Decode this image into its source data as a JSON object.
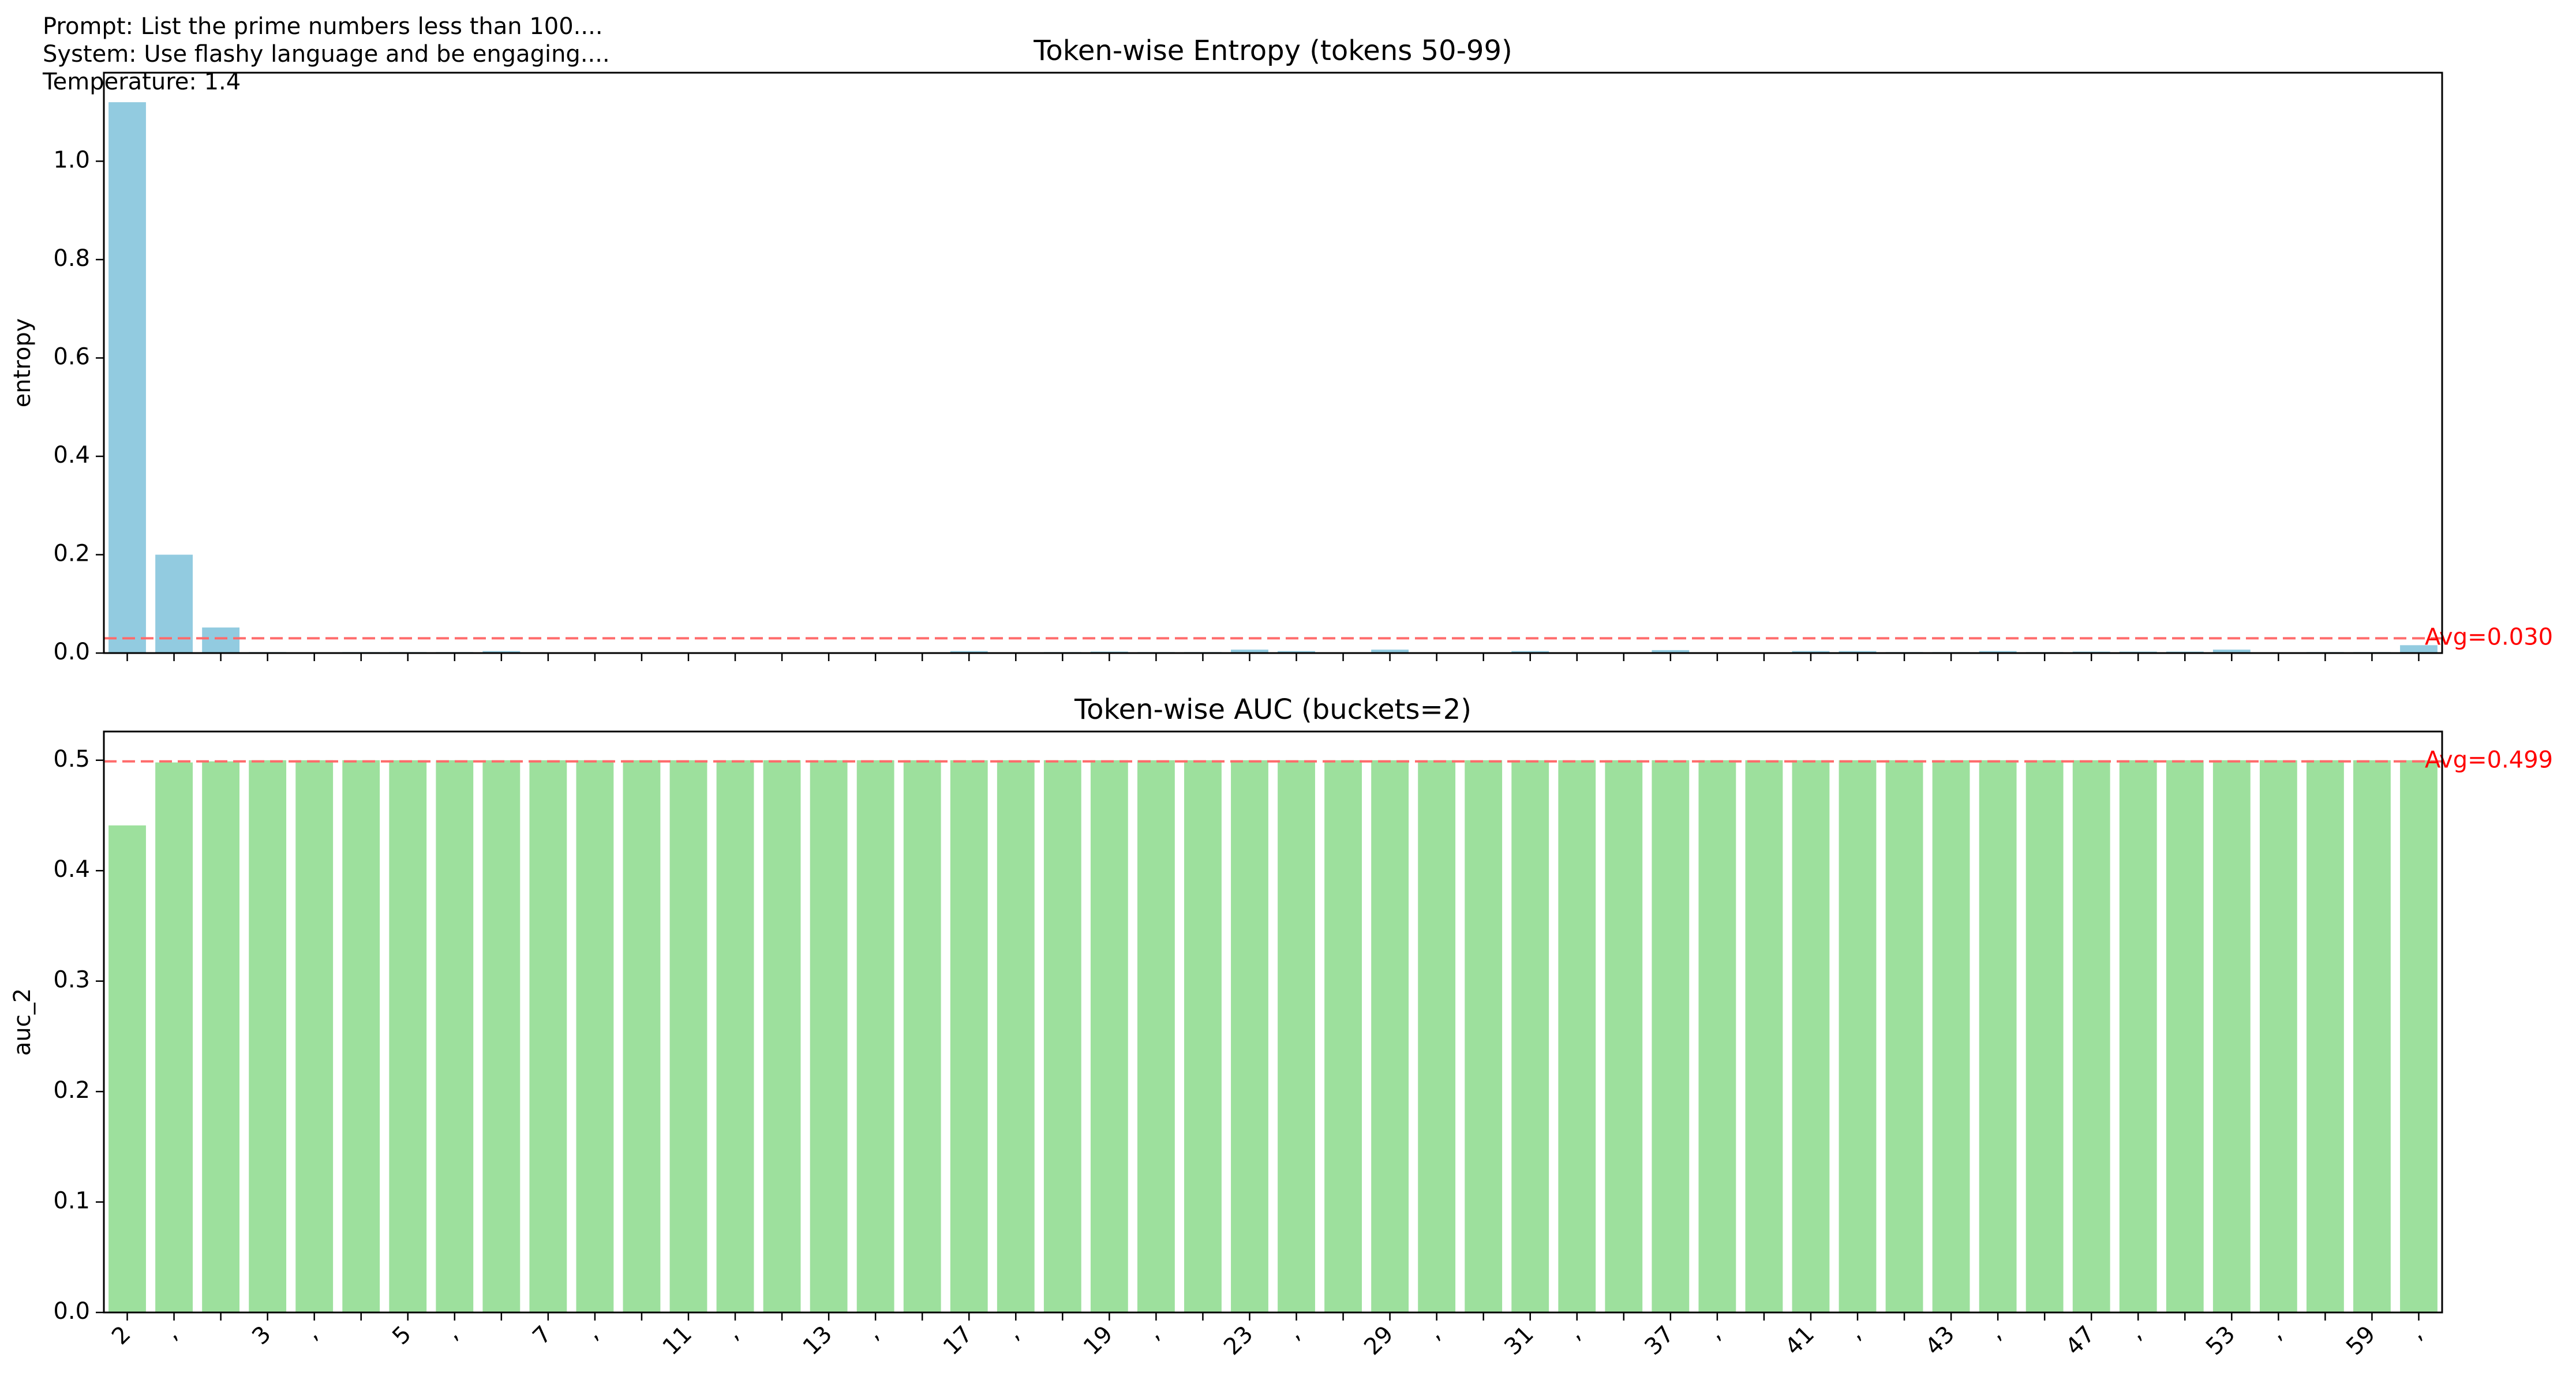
{
  "header": {
    "prompt": "Prompt: List the prime numbers less than 100....",
    "system": "System: Use flashy language and be engaging....",
    "temperature": "Temperature: 1.4"
  },
  "chart_data": [
    {
      "type": "bar",
      "title": "Token-wise Entropy (tokens 50-99)",
      "xlabel": "",
      "ylabel": "entropy",
      "ylim": [
        0,
        1.18
      ],
      "yticks": [
        "0.0",
        "0.2",
        "0.4",
        "0.6",
        "0.8",
        "1.0"
      ],
      "bar_color": "#92CBE0",
      "categories": [
        "2",
        ",",
        "",
        "3",
        ",",
        "",
        "5",
        ",",
        "",
        "7",
        ",",
        "",
        "11",
        ",",
        "",
        "13",
        ",",
        "",
        "17",
        ",",
        "",
        "19",
        ",",
        "",
        "23",
        ",",
        "",
        "29",
        ",",
        "",
        "31",
        ",",
        "",
        "37",
        ",",
        "",
        "41",
        ",",
        "",
        "43",
        ",",
        "",
        "47",
        ",",
        "",
        "53",
        ",",
        "",
        "59",
        ","
      ],
      "values": [
        1.12,
        0.2,
        0.052,
        0.002,
        0.001,
        0.002,
        0.002,
        0.002,
        0.004,
        0.001,
        0.001,
        0.001,
        0.001,
        0.001,
        0.001,
        0.001,
        0.001,
        0.001,
        0.004,
        0.001,
        0.002,
        0.003,
        0.002,
        0.002,
        0.007,
        0.004,
        0.001,
        0.007,
        0.001,
        0.001,
        0.004,
        0.001,
        0.001,
        0.006,
        0.001,
        0.001,
        0.004,
        0.004,
        0.002,
        0.002,
        0.004,
        0.002,
        0.003,
        0.003,
        0.003,
        0.007,
        0.001,
        0.002,
        0.002,
        0.016
      ],
      "average": 0.03,
      "average_label": "Avg=0.030",
      "average_color": "#FF6B6B"
    },
    {
      "type": "bar",
      "title": "Token-wise AUC (buckets=2)",
      "xlabel": "",
      "ylabel": "auc_2",
      "ylim": [
        0,
        0.526
      ],
      "yticks": [
        "0.0",
        "0.1",
        "0.2",
        "0.3",
        "0.4",
        "0.5"
      ],
      "bar_color": "#9DE09D",
      "categories": [
        "2",
        ",",
        "",
        "3",
        ",",
        "",
        "5",
        ",",
        "",
        "7",
        ",",
        "",
        "11",
        ",",
        "",
        "13",
        ",",
        "",
        "17",
        ",",
        "",
        "19",
        ",",
        "",
        "23",
        ",",
        "",
        "29",
        ",",
        "",
        "31",
        ",",
        "",
        "37",
        ",",
        "",
        "41",
        ",",
        "",
        "43",
        ",",
        "",
        "47",
        ",",
        "",
        "53",
        ",",
        "",
        "59",
        ","
      ],
      "values": [
        0.441,
        0.498,
        0.499,
        0.5,
        0.5,
        0.5,
        0.5,
        0.5,
        0.5,
        0.5,
        0.5,
        0.5,
        0.5,
        0.5,
        0.5,
        0.5,
        0.5,
        0.5,
        0.5,
        0.5,
        0.5,
        0.5,
        0.5,
        0.5,
        0.5,
        0.5,
        0.5,
        0.5,
        0.5,
        0.5,
        0.5,
        0.5,
        0.5,
        0.5,
        0.5,
        0.5,
        0.5,
        0.5,
        0.5,
        0.5,
        0.5,
        0.5,
        0.5,
        0.5,
        0.5,
        0.5,
        0.5,
        0.5,
        0.5,
        0.5
      ],
      "average": 0.499,
      "average_label": "Avg=0.499",
      "average_color": "#FF6B6B"
    }
  ]
}
